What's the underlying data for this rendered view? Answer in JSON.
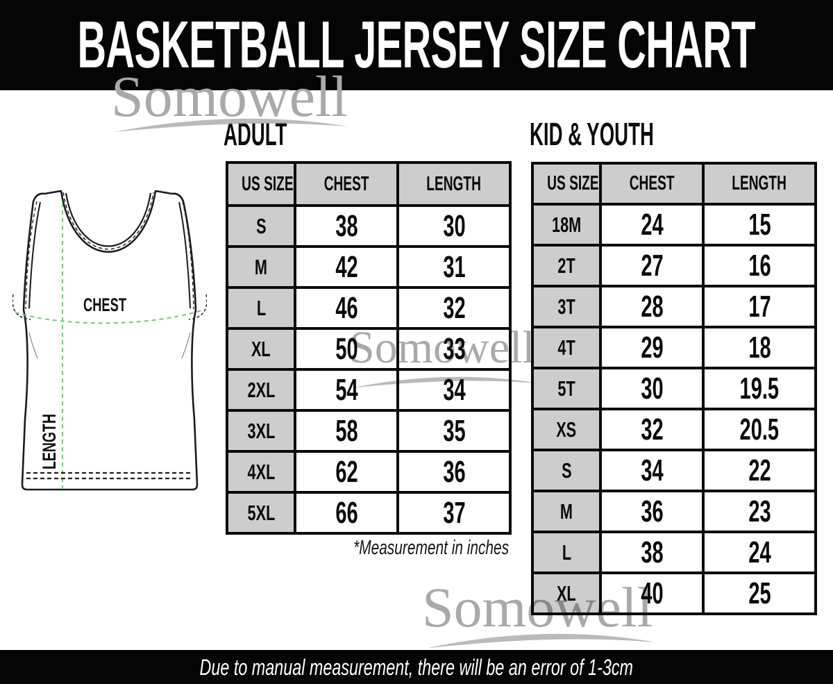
{
  "header": {
    "title": "BASKETBALL JERSEY SIZE CHART"
  },
  "watermark": {
    "text": "Somowell"
  },
  "jersey": {
    "chest_label": "CHEST",
    "length_label": "LENGTH"
  },
  "adult_table": {
    "title": "ADULT",
    "headers": [
      "US SIZE",
      "CHEST",
      "LENGTH"
    ],
    "rows": [
      [
        "S",
        "38",
        "30"
      ],
      [
        "M",
        "42",
        "31"
      ],
      [
        "L",
        "46",
        "32"
      ],
      [
        "XL",
        "50",
        "33"
      ],
      [
        "2XL",
        "54",
        "34"
      ],
      [
        "3XL",
        "58",
        "35"
      ],
      [
        "4XL",
        "62",
        "36"
      ],
      [
        "5XL",
        "66",
        "37"
      ]
    ]
  },
  "kid_table": {
    "title": "KID & YOUTH",
    "headers": [
      "US SIZE",
      "CHEST",
      "LENGTH"
    ],
    "rows": [
      [
        "18M",
        "24",
        "15"
      ],
      [
        "2T",
        "27",
        "16"
      ],
      [
        "3T",
        "28",
        "17"
      ],
      [
        "4T",
        "29",
        "18"
      ],
      [
        "5T",
        "30",
        "19.5"
      ],
      [
        "XS",
        "32",
        "20.5"
      ],
      [
        "S",
        "34",
        "22"
      ],
      [
        "M",
        "36",
        "23"
      ],
      [
        "L",
        "38",
        "24"
      ],
      [
        "XL",
        "40",
        "25"
      ]
    ]
  },
  "notes": {
    "measurement": "*Measurement in inches"
  },
  "footer": {
    "note": "Due to manual measurement, there will be an error of 1-3cm"
  },
  "colors": {
    "bar_black": "#050505",
    "table_header_gray": "#cdcdcd",
    "table_border_black": "#0a0a0a",
    "watermark_gray": "#a9a9a9",
    "measure_line_green": "#7cc47c"
  },
  "chart_data": [
    {
      "type": "table",
      "title": "ADULT",
      "columns": [
        "US SIZE",
        "CHEST",
        "LENGTH"
      ],
      "rows": [
        [
          "S",
          38,
          30
        ],
        [
          "M",
          42,
          31
        ],
        [
          "L",
          46,
          32
        ],
        [
          "XL",
          50,
          33
        ],
        [
          "2XL",
          54,
          34
        ],
        [
          "3XL",
          58,
          35
        ],
        [
          "4XL",
          62,
          36
        ],
        [
          "5XL",
          66,
          37
        ]
      ],
      "units": "inches"
    },
    {
      "type": "table",
      "title": "KID & YOUTH",
      "columns": [
        "US SIZE",
        "CHEST",
        "LENGTH"
      ],
      "rows": [
        [
          "18M",
          24,
          15
        ],
        [
          "2T",
          27,
          16
        ],
        [
          "3T",
          28,
          17
        ],
        [
          "4T",
          29,
          18
        ],
        [
          "5T",
          30,
          19.5
        ],
        [
          "XS",
          32,
          20.5
        ],
        [
          "S",
          34,
          22
        ],
        [
          "M",
          36,
          23
        ],
        [
          "L",
          38,
          24
        ],
        [
          "XL",
          40,
          25
        ]
      ],
      "units": "inches"
    }
  ]
}
